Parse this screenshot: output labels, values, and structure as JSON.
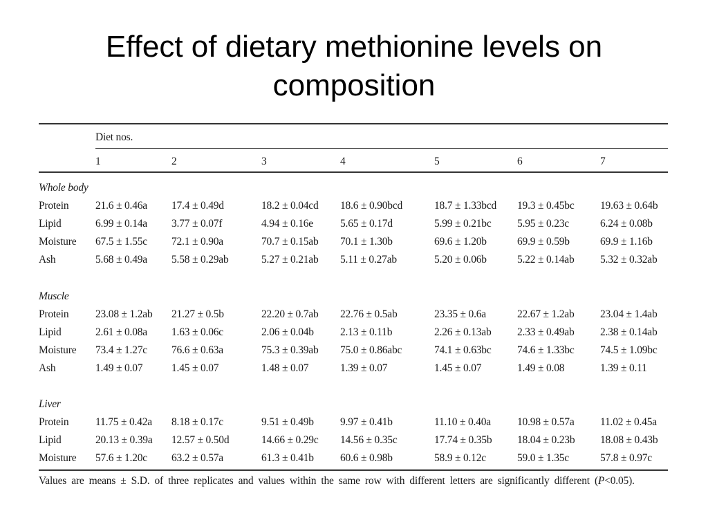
{
  "slide": {
    "title_line1": "Effect of dietary methionine levels on",
    "title_line2": "composition"
  },
  "table": {
    "group_header": "Diet nos.",
    "columns": [
      "1",
      "2",
      "3",
      "4",
      "5",
      "6",
      "7"
    ],
    "sections": [
      {
        "name": "Whole body",
        "rows": [
          {
            "label": "Protein",
            "values": [
              "21.6 ± 0.46a",
              "17.4 ± 0.49d",
              "18.2 ± 0.04cd",
              "18.6 ± 0.90bcd",
              "18.7 ± 1.33bcd",
              "19.3 ± 0.45bc",
              "19.63 ± 0.64b"
            ]
          },
          {
            "label": "Lipid",
            "values": [
              "6.99 ± 0.14a",
              "3.77 ± 0.07f",
              "4.94 ± 0.16e",
              "5.65 ± 0.17d",
              "5.99 ± 0.21bc",
              "5.95 ± 0.23c",
              "6.24 ± 0.08b"
            ]
          },
          {
            "label": "Moisture",
            "values": [
              "67.5 ± 1.55c",
              "72.1 ± 0.90a",
              "70.7 ± 0.15ab",
              "70.1 ± 1.30b",
              "69.6 ± 1.20b",
              "69.9 ± 0.59b",
              "69.9 ± 1.16b"
            ]
          },
          {
            "label": "Ash",
            "values": [
              "5.68 ± 0.49a",
              "5.58 ± 0.29ab",
              "5.27 ± 0.21ab",
              "5.11 ± 0.27ab",
              "5.20 ± 0.06b",
              "5.22 ± 0.14ab",
              "5.32 ± 0.32ab"
            ]
          }
        ]
      },
      {
        "name": "Muscle",
        "rows": [
          {
            "label": "Protein",
            "values": [
              "23.08 ± 1.2ab",
              "21.27 ± 0.5b",
              "22.20 ± 0.7ab",
              "22.76 ± 0.5ab",
              "23.35 ± 0.6a",
              "22.67 ± 1.2ab",
              "23.04 ± 1.4ab"
            ]
          },
          {
            "label": "Lipid",
            "values": [
              "2.61 ± 0.08a",
              "1.63 ± 0.06c",
              "2.06 ± 0.04b",
              "2.13 ± 0.11b",
              "2.26 ± 0.13ab",
              "2.33 ± 0.49ab",
              "2.38 ± 0.14ab"
            ]
          },
          {
            "label": "Moisture",
            "values": [
              "73.4 ± 1.27c",
              "76.6 ± 0.63a",
              "75.3 ± 0.39ab",
              "75.0 ± 0.86abc",
              "74.1 ± 0.63bc",
              "74.6 ± 1.33bc",
              "74.5 ± 1.09bc"
            ]
          },
          {
            "label": "Ash",
            "values": [
              "1.49 ± 0.07",
              "1.45 ± 0.07",
              "1.48 ± 0.07",
              "1.39 ± 0.07",
              "1.45 ± 0.07",
              "1.49 ± 0.08",
              "1.39 ± 0.11"
            ]
          }
        ]
      },
      {
        "name": "Liver",
        "rows": [
          {
            "label": "Protein",
            "values": [
              "11.75 ± 0.42a",
              "8.18 ± 0.17c",
              "9.51 ± 0.49b",
              "9.97 ± 0.41b",
              "11.10 ± 0.40a",
              "10.98 ± 0.57a",
              "11.02 ± 0.45a"
            ]
          },
          {
            "label": "Lipid",
            "values": [
              "20.13 ± 0.39a",
              "12.57 ± 0.50d",
              "14.66 ± 0.29c",
              "14.56 ± 0.35c",
              "17.74 ± 0.35b",
              "18.04 ± 0.23b",
              "18.08 ± 0.43b"
            ]
          },
          {
            "label": "Moisture",
            "values": [
              "57.6 ± 1.20c",
              "63.2 ± 0.57a",
              "61.3 ± 0.41b",
              "60.6 ± 0.98b",
              "58.9 ± 0.12c",
              "59.0 ± 1.35c",
              "57.8 ± 0.97c"
            ]
          }
        ]
      }
    ],
    "footnote_prefix": "Values are means ± S.D. of three replicates and values within the same row with different letters are significantly different (",
    "footnote_p": "P",
    "footnote_suffix": "<0.05)."
  }
}
